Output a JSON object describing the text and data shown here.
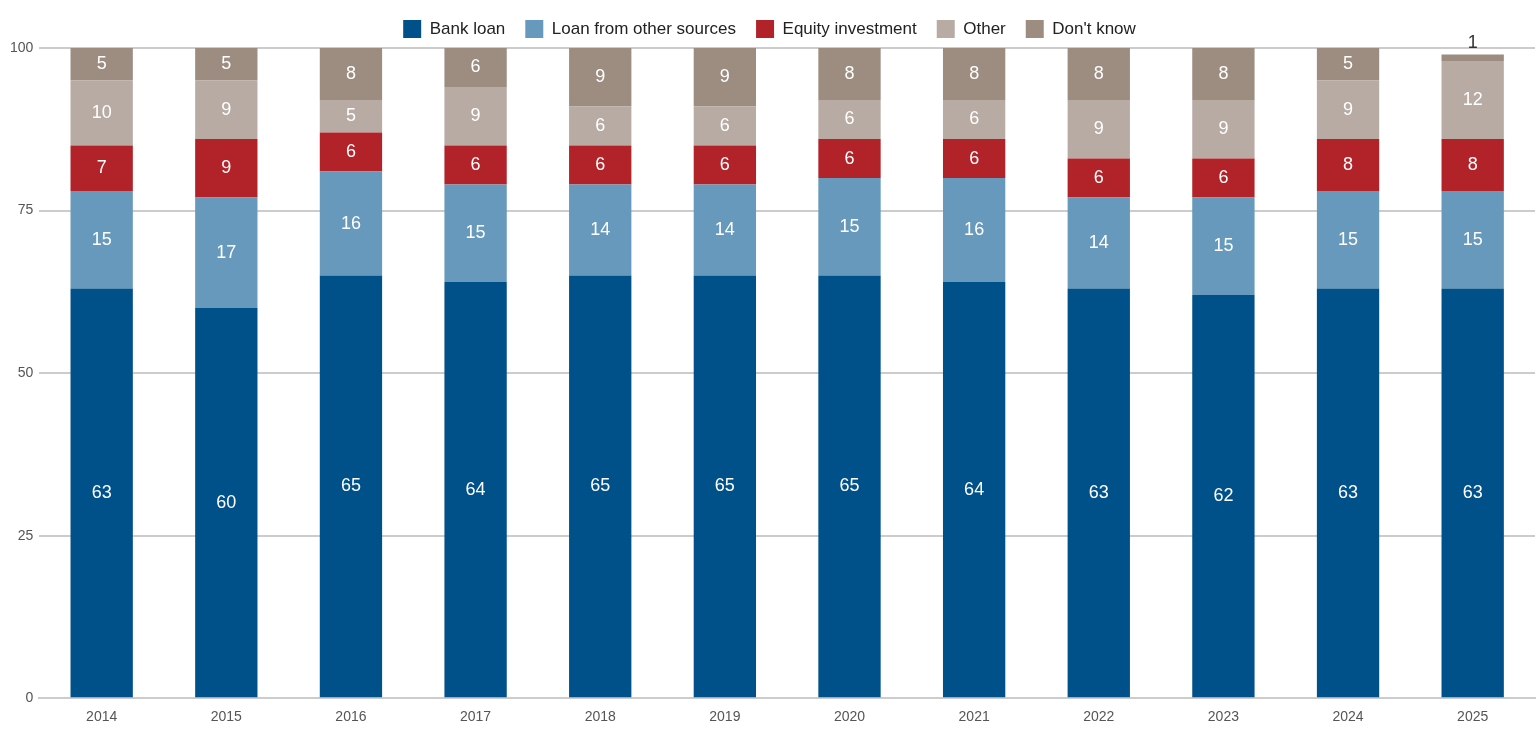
{
  "chart_data": {
    "type": "bar",
    "stacked": true,
    "categories": [
      "2014",
      "2015",
      "2016",
      "2017",
      "2018",
      "2019",
      "2020",
      "2021",
      "2022",
      "2023",
      "2024",
      "2025"
    ],
    "series": [
      {
        "name": "Bank loan",
        "color": "#00508a",
        "values": [
          63,
          60,
          65,
          64,
          65,
          65,
          65,
          64,
          63,
          62,
          63,
          63
        ]
      },
      {
        "name": "Loan from other sources",
        "color": "#6699bb",
        "values": [
          15,
          17,
          16,
          15,
          14,
          14,
          15,
          16,
          14,
          15,
          15,
          15
        ]
      },
      {
        "name": "Equity investment",
        "color": "#b22229",
        "values": [
          7,
          9,
          6,
          6,
          6,
          6,
          6,
          6,
          6,
          6,
          8,
          8
        ]
      },
      {
        "name": "Other",
        "color": "#b8aba4",
        "values": [
          10,
          9,
          5,
          9,
          6,
          6,
          6,
          6,
          9,
          9,
          9,
          12
        ]
      },
      {
        "name": "Don't know",
        "color": "#9d8c80",
        "values": [
          5,
          5,
          8,
          6,
          9,
          9,
          8,
          8,
          8,
          8,
          5,
          1
        ]
      }
    ],
    "ylim": [
      0,
      100
    ],
    "yticks": [
      0,
      25,
      50,
      75,
      100
    ],
    "grid": "y",
    "legend": "top",
    "data_labels": true
  }
}
